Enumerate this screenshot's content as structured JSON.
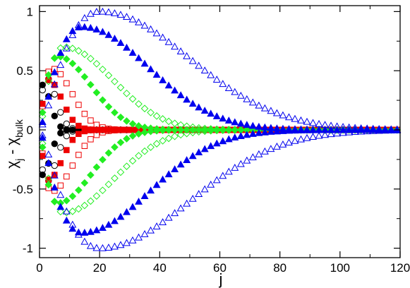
{
  "chart_data": {
    "type": "scatter",
    "title": "",
    "xlabel": "j",
    "ylabel": {
      "base": "χ",
      "sub1": "j",
      "minus": " - ",
      "base2": "χ",
      "sub2": "bulk"
    },
    "xlim": [
      0,
      120
    ],
    "ylim": [
      -1.08,
      1.05
    ],
    "x_ticks": [
      0,
      20,
      40,
      60,
      80,
      100,
      120
    ],
    "y_ticks": [
      -1,
      -0.5,
      0,
      0.5,
      1
    ],
    "x_tick_labels": [
      "0",
      "20",
      "40",
      "60",
      "80",
      "100",
      "120"
    ],
    "y_tick_labels": [
      "-1",
      "-0.5",
      "0",
      "0.5",
      "1"
    ],
    "grid": false,
    "legend": "none",
    "x_step": 2,
    "x_max": 120,
    "series": [
      {
        "marker": "circle",
        "fill": "filled",
        "color": "#000000",
        "amplitude": 0.38,
        "peak_j": 1,
        "decay_scale": 3.5
      },
      {
        "marker": "circle",
        "fill": "open",
        "color": "#000000",
        "amplitude": 0.45,
        "peak_j": 2,
        "decay_scale": 4.5
      },
      {
        "marker": "square",
        "fill": "filled",
        "color": "#ee0000",
        "amplitude": 0.42,
        "peak_j": 3,
        "decay_scale": 6
      },
      {
        "marker": "square",
        "fill": "open",
        "color": "#ee0000",
        "amplitude": 0.52,
        "peak_j": 4,
        "decay_scale": 9
      },
      {
        "marker": "diamond",
        "fill": "filled",
        "color": "#22ee22",
        "amplitude": 0.62,
        "peak_j": 6,
        "decay_scale": 15
      },
      {
        "marker": "diamond",
        "fill": "open",
        "color": "#22ee22",
        "amplitude": 0.7,
        "peak_j": 8,
        "decay_scale": 22
      },
      {
        "marker": "triangle",
        "fill": "filled",
        "color": "#0000ee",
        "amplitude": 0.87,
        "peak_j": 14,
        "decay_scale": 30
      },
      {
        "marker": "triangle",
        "fill": "open",
        "color": "#0000ee",
        "amplitude": 1.0,
        "peak_j": 20,
        "decay_scale": 40
      }
    ]
  }
}
